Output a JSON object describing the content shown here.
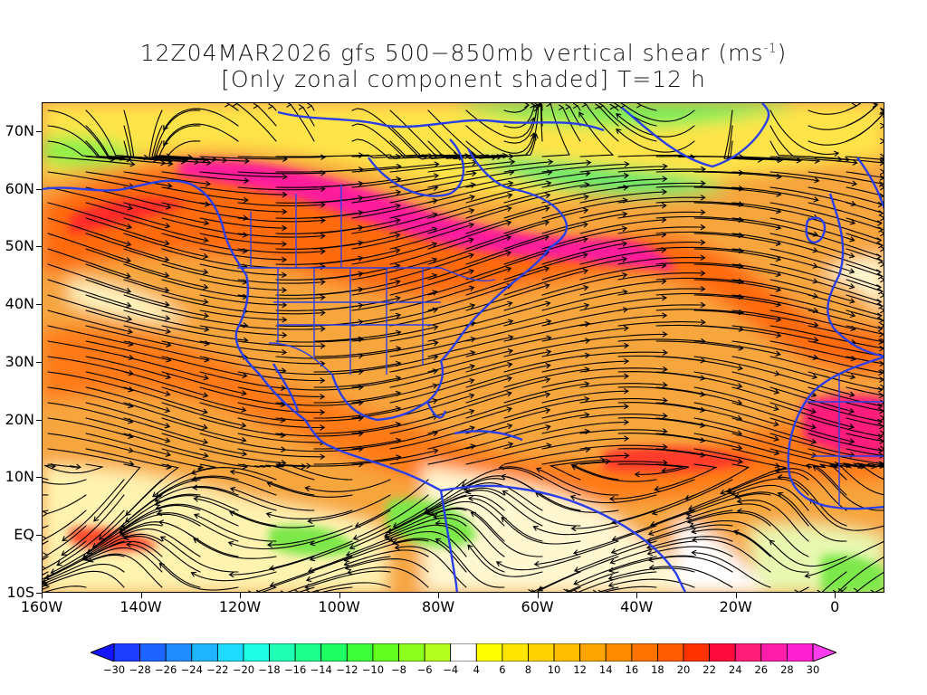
{
  "title": {
    "line1_prefix": "12Z04MAR2026 gfs 500−850mb vertical shear (ms",
    "line1_sup": "-1",
    "line1_suffix": ")",
    "line2": "[Only zonal component shaded] T=12 h"
  },
  "map": {
    "projection": "cylindrical equidistant",
    "lon_range": [
      -160,
      10
    ],
    "lat_range": [
      -10,
      75
    ],
    "coastline_color": "#2a3fe8",
    "streamline_color": "#000000",
    "lat_labels": [
      "70N",
      "60N",
      "50N",
      "40N",
      "30N",
      "20N",
      "10N",
      "EQ",
      "10S"
    ],
    "lat_values": [
      70,
      60,
      50,
      40,
      30,
      20,
      10,
      0,
      -10
    ],
    "lon_labels": [
      "160W",
      "140W",
      "120W",
      "100W",
      "80W",
      "60W",
      "40W",
      "20W",
      "0"
    ],
    "lon_values": [
      -160,
      -140,
      -120,
      -100,
      -80,
      -60,
      -40,
      -20,
      0
    ],
    "jet_axis": "zonal shear maximum 45N-55N from 140W to 40W; secondary band 10N-30N across Atlantic and Africa"
  },
  "colorbar": {
    "labels": [
      "-30",
      "-28",
      "-26",
      "-24",
      "-22",
      "-20",
      "-18",
      "-16",
      "-14",
      "-12",
      "-10",
      "-8",
      "-6",
      "-4",
      "4",
      "6",
      "8",
      "10",
      "12",
      "14",
      "16",
      "18",
      "20",
      "22",
      "24",
      "26",
      "28",
      "30"
    ],
    "colors": [
      "#1414ff",
      "#1e3cff",
      "#1e64ff",
      "#1e8cff",
      "#1eb4ff",
      "#1edcff",
      "#1effe6",
      "#1effb4",
      "#1eff8c",
      "#1eff64",
      "#3cff3c",
      "#64ff1e",
      "#8cff1e",
      "#b4ff1e",
      "#ffffff",
      "#ffff00",
      "#ffe600",
      "#ffd200",
      "#ffbe00",
      "#ffa500",
      "#ff8c00",
      "#ff7300",
      "#ff5a00",
      "#ff3200",
      "#ff0a3c",
      "#ff1e78",
      "#ff1eaa",
      "#ff1ed2",
      "#ff3cf0"
    ]
  }
}
